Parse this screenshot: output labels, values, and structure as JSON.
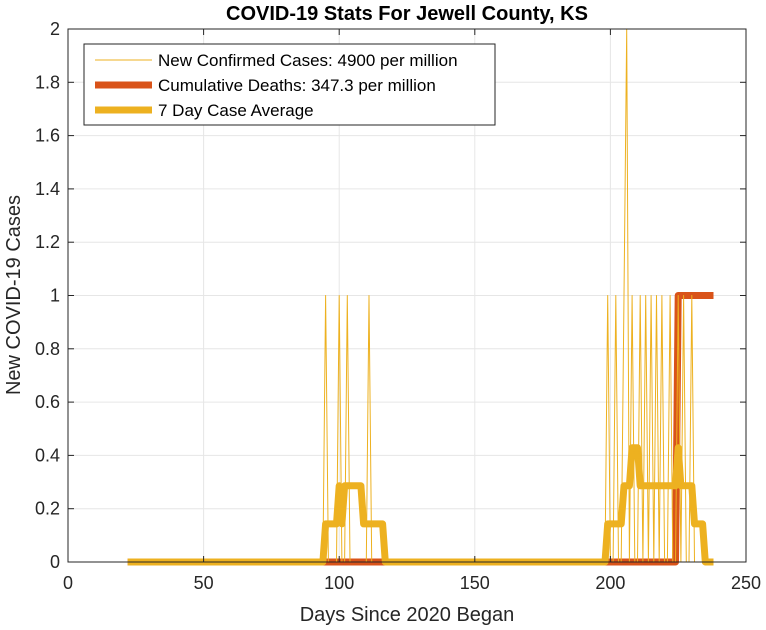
{
  "chart_data": {
    "type": "line",
    "title": "COVID-19 Stats For Jewell County, KS",
    "xlabel": "Days Since 2020 Began",
    "ylabel": "New COVID-19 Cases",
    "xlim": [
      0,
      250
    ],
    "ylim": [
      0,
      2
    ],
    "xticks": [
      0,
      50,
      100,
      150,
      200,
      250
    ],
    "yticks": [
      0,
      0.2,
      0.4,
      0.6,
      0.8,
      1,
      1.2,
      1.4,
      1.6,
      1.8,
      2
    ],
    "xtick_labels": [
      "0",
      "50",
      "100",
      "150",
      "200",
      "250"
    ],
    "ytick_labels": [
      "0",
      "0.2",
      "0.4",
      "0.6",
      "0.8",
      "1",
      "1.2",
      "1.4",
      "1.6",
      "1.8",
      "2"
    ],
    "grid": true,
    "legend_position": "top-left",
    "series": [
      {
        "name": "New Confirmed Cases: 4900 per million",
        "color": "#EDB120",
        "style": "thin",
        "x": [
          22,
          94,
          95,
          96,
          99,
          100,
          101,
          102,
          103,
          104,
          110,
          111,
          112,
          198,
          199,
          200,
          201,
          202,
          203,
          204,
          205,
          206,
          207,
          208,
          209,
          210,
          211,
          212,
          213,
          214,
          215,
          216,
          217,
          218,
          219,
          220,
          221,
          222,
          223,
          224,
          225,
          226,
          227,
          228,
          229,
          230,
          231,
          232,
          238
        ],
        "y": [
          0,
          0,
          1,
          0,
          0,
          1,
          0,
          0,
          1,
          0,
          0,
          1,
          0,
          0,
          1,
          0,
          0,
          1,
          0,
          0,
          1,
          2,
          0,
          1,
          0,
          0,
          1,
          0,
          1,
          0,
          1,
          0,
          1,
          0,
          1,
          0,
          0,
          1,
          0,
          0,
          1,
          0,
          1,
          0,
          0,
          1,
          0,
          0,
          0
        ]
      },
      {
        "name": "Cumulative Deaths: 347.3 per million",
        "color": "#D95319",
        "style": "thick",
        "x": [
          22,
          223,
          224,
          225,
          238
        ],
        "y": [
          0,
          0,
          0,
          1,
          1
        ]
      },
      {
        "name": "7 Day Case Average",
        "color": "#EDB120",
        "style": "thick",
        "x": [
          22,
          94,
          95,
          99,
          100,
          101,
          102,
          103,
          104,
          108,
          109,
          110,
          111,
          116,
          117,
          118,
          198,
          199,
          200,
          203,
          204,
          205,
          206,
          207,
          208,
          209,
          210,
          211,
          212,
          221,
          222,
          223,
          224,
          225,
          226,
          227,
          228,
          229,
          230,
          231,
          232,
          234,
          235,
          236,
          237,
          238
        ],
        "y": [
          0,
          0,
          0.143,
          0.143,
          0.286,
          0.143,
          0.286,
          0.286,
          0.286,
          0.286,
          0.143,
          0.143,
          0.143,
          0.143,
          0,
          0,
          0,
          0.143,
          0.143,
          0.143,
          0.143,
          0.286,
          0.286,
          0.286,
          0.429,
          0.429,
          0.429,
          0.286,
          0.286,
          0.286,
          0.286,
          0.286,
          0.286,
          0.429,
          0.286,
          0.286,
          0.286,
          0.286,
          0.286,
          0.143,
          0.143,
          0.143,
          0,
          0,
          0,
          0
        ]
      }
    ]
  }
}
